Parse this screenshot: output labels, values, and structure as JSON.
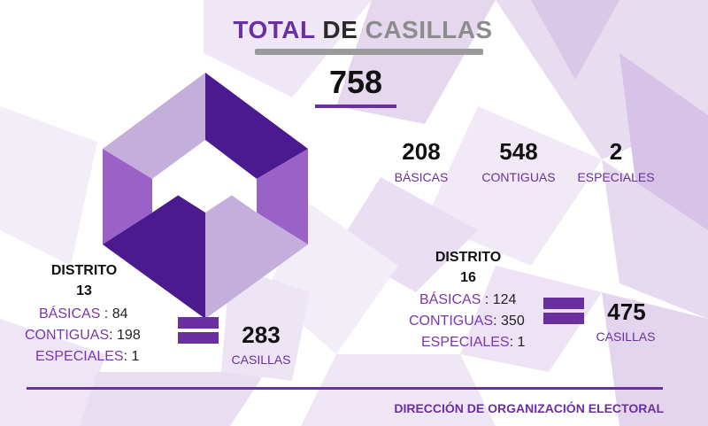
{
  "title": {
    "part1": "TOTAL",
    "part2": " DE ",
    "part3": "CASILLAS"
  },
  "total": "758",
  "summary": [
    {
      "value": "208",
      "label": "BÁSICAS"
    },
    {
      "value": "548",
      "label": "CONTIGUAS"
    },
    {
      "value": "2",
      "label": "ESPECIALES"
    }
  ],
  "district13": {
    "heading": "DISTRITO",
    "number": "13",
    "rows": [
      {
        "label": "BÁSICAS",
        "sep": " : ",
        "value": "84"
      },
      {
        "label": "CONTIGUAS",
        "sep": ": ",
        "value": "198"
      },
      {
        "label": "ESPECIALES",
        "sep": ": ",
        "value": "1"
      }
    ],
    "result": "283",
    "result_label": "CASILLAS"
  },
  "district16": {
    "heading": "DISTRITO",
    "number": "16",
    "rows": [
      {
        "label": "BÁSICAS",
        "sep": " : ",
        "value": "124"
      },
      {
        "label": "CONTIGUAS",
        "sep": ": ",
        "value": "350"
      },
      {
        "label": "ESPECIALES",
        "sep": ": ",
        "value": "1"
      }
    ],
    "result": "475",
    "result_label": "CASILLAS"
  },
  "footer": "DIRECCIÓN DE ORGANIZACIÓN ELECTORAL",
  "colors": {
    "accent": "#6a2fa0",
    "dark_purple": "#4a1a8c",
    "mid_purple": "#9b62c4",
    "light_purple": "#c6b1db",
    "gray": "#9a9a9a"
  }
}
